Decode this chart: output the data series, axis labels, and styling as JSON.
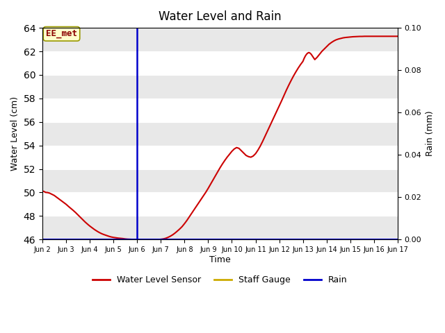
{
  "title": "Water Level and Rain",
  "xlabel": "Time",
  "ylabel_left": "Water Level (cm)",
  "ylabel_right": "Rain (mm)",
  "ylim_left": [
    46,
    64
  ],
  "ylim_right": [
    0.0,
    0.1
  ],
  "yticks_left": [
    46,
    48,
    50,
    52,
    54,
    56,
    58,
    60,
    62,
    64
  ],
  "yticks_right": [
    0.0,
    0.02,
    0.04,
    0.06,
    0.08,
    0.1
  ],
  "xtick_labels": [
    "Jun 2",
    "Jun 3",
    "Jun 4",
    "Jun 5",
    "Jun 6",
    "Jun 7",
    "Jun 8",
    "Jun 9",
    "Jun 10",
    "Jun 11",
    "Jun 12",
    "Jun 13",
    "Jun 14",
    "Jun 15",
    "Jun 16",
    "Jun 17"
  ],
  "vline_x": 4.0,
  "vline_color": "#0000cc",
  "line_color": "#cc0000",
  "line_width": 1.5,
  "rain_line_color": "#0000cc",
  "staff_gauge_color": "#ccaa00",
  "annotation_text": "EE_met",
  "fig_bg_color": "#ffffff",
  "plot_bg_color": "#ffffff",
  "band_color_light": "#ffffff",
  "band_color_dark": "#e8e8e8",
  "water_level_x": [
    0.0,
    0.05,
    0.1,
    0.15,
    0.2,
    0.3,
    0.4,
    0.5,
    0.6,
    0.7,
    0.8,
    0.9,
    1.0,
    1.1,
    1.2,
    1.3,
    1.4,
    1.5,
    1.6,
    1.7,
    1.8,
    1.9,
    2.0,
    2.1,
    2.2,
    2.3,
    2.4,
    2.5,
    2.6,
    2.7,
    2.8,
    2.9,
    3.0,
    3.1,
    3.2,
    3.3,
    3.4,
    3.5,
    3.6,
    3.7,
    3.8,
    3.9,
    4.0,
    4.1,
    4.2,
    4.3,
    4.4,
    4.5,
    4.6,
    4.7,
    4.8,
    4.9,
    5.0,
    5.1,
    5.2,
    5.3,
    5.4,
    5.5,
    5.6,
    5.7,
    5.8,
    5.9,
    6.0,
    6.1,
    6.2,
    6.3,
    6.4,
    6.5,
    6.6,
    6.7,
    6.8,
    6.9,
    7.0,
    7.1,
    7.2,
    7.3,
    7.4,
    7.5,
    7.6,
    7.7,
    7.8,
    7.9,
    8.0,
    8.1,
    8.2,
    8.3,
    8.4,
    8.5,
    8.6,
    8.7,
    8.8,
    8.9,
    9.0,
    9.1,
    9.2,
    9.3,
    9.4,
    9.5,
    9.6,
    9.7,
    9.8,
    9.9,
    10.0,
    10.1,
    10.2,
    10.3,
    10.4,
    10.5,
    10.6,
    10.7,
    10.8,
    10.9,
    11.0,
    11.05,
    11.1,
    11.15,
    11.2,
    11.25,
    11.3,
    11.35,
    11.4,
    11.45,
    11.5,
    11.6,
    11.7,
    11.8,
    11.9,
    12.0,
    12.1,
    12.2,
    12.3,
    12.4,
    12.5,
    12.6,
    12.7,
    12.8,
    12.9,
    13.0,
    13.1,
    13.2,
    13.3,
    13.4,
    13.5,
    13.6,
    13.7,
    13.8,
    13.9,
    14.0,
    14.1,
    14.2,
    14.3,
    14.4,
    14.5,
    14.6,
    14.7,
    14.8,
    14.9,
    15.0
  ],
  "water_level_y": [
    50.1,
    50.1,
    50.05,
    50.0,
    50.0,
    49.95,
    49.85,
    49.75,
    49.6,
    49.45,
    49.3,
    49.15,
    49.0,
    48.82,
    48.65,
    48.48,
    48.3,
    48.1,
    47.9,
    47.7,
    47.5,
    47.32,
    47.15,
    47.0,
    46.85,
    46.72,
    46.6,
    46.5,
    46.42,
    46.35,
    46.28,
    46.22,
    46.18,
    46.15,
    46.12,
    46.1,
    46.08,
    46.05,
    46.03,
    46.02,
    46.01,
    46.0,
    46.0,
    46.0,
    46.0,
    46.0,
    46.0,
    46.0,
    46.0,
    46.0,
    46.0,
    46.0,
    46.02,
    46.05,
    46.1,
    46.18,
    46.28,
    46.4,
    46.55,
    46.72,
    46.9,
    47.1,
    47.35,
    47.62,
    47.92,
    48.22,
    48.52,
    48.82,
    49.12,
    49.42,
    49.72,
    50.02,
    50.35,
    50.7,
    51.05,
    51.4,
    51.75,
    52.1,
    52.42,
    52.72,
    53.0,
    53.25,
    53.5,
    53.7,
    53.82,
    53.75,
    53.55,
    53.35,
    53.15,
    53.05,
    53.0,
    53.1,
    53.3,
    53.6,
    53.95,
    54.35,
    54.78,
    55.22,
    55.65,
    56.08,
    56.5,
    56.92,
    57.35,
    57.8,
    58.25,
    58.7,
    59.12,
    59.52,
    59.9,
    60.25,
    60.58,
    60.88,
    61.15,
    61.4,
    61.6,
    61.75,
    61.85,
    61.9,
    61.85,
    61.75,
    61.6,
    61.45,
    61.3,
    61.5,
    61.75,
    62.0,
    62.2,
    62.4,
    62.6,
    62.75,
    62.88,
    62.98,
    63.05,
    63.1,
    63.15,
    63.18,
    63.2,
    63.22,
    63.24,
    63.25,
    63.26,
    63.27,
    63.27,
    63.28,
    63.28,
    63.28,
    63.28,
    63.28,
    63.28,
    63.28,
    63.28,
    63.28,
    63.28,
    63.28,
    63.28,
    63.28,
    63.28,
    63.28
  ]
}
